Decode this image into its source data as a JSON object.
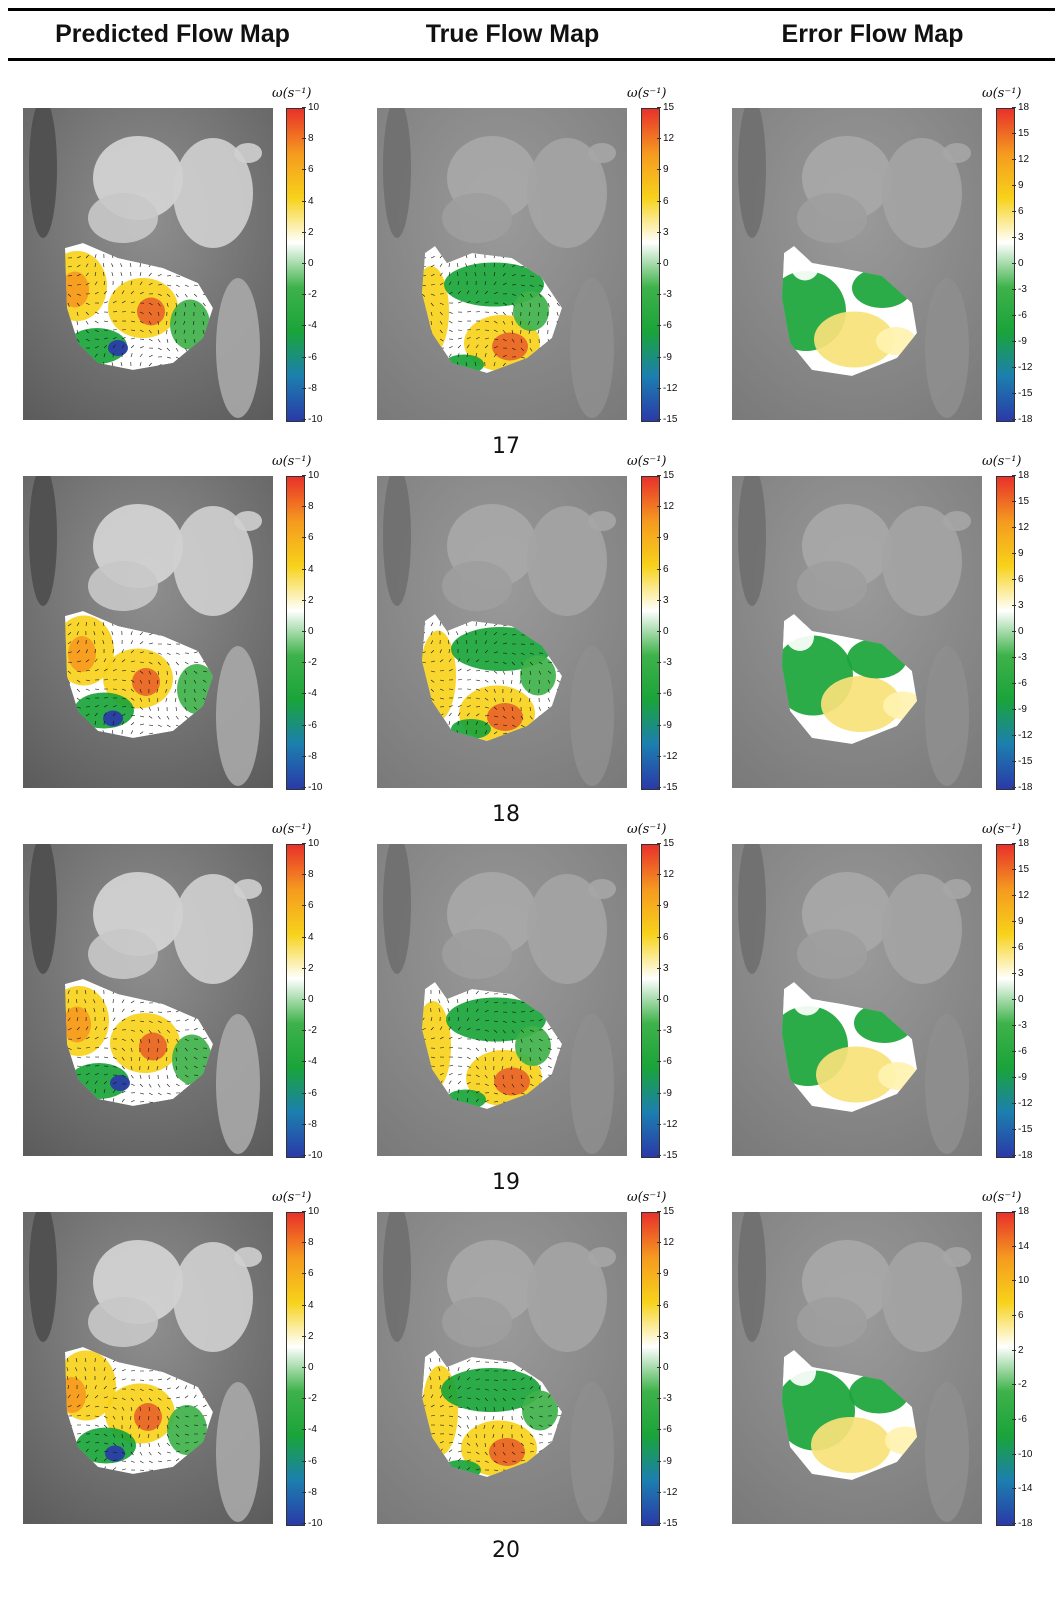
{
  "header": {
    "col_predicted": "Predicted Flow Map",
    "col_true": "True Flow Map",
    "col_error": "Error Flow Map"
  },
  "colorbar_unit": "ω(s⁻¹)",
  "rows": [
    {
      "frame": "17",
      "ticks": [
        [
          "10",
          "8",
          "6",
          "4",
          "2",
          "0",
          "-2",
          "-4",
          "-6",
          "-8",
          "-10"
        ],
        [
          "15",
          "12",
          "9",
          "6",
          "3",
          "0",
          "-3",
          "-6",
          "-9",
          "-12",
          "-15"
        ],
        [
          "18",
          "15",
          "12",
          "9",
          "6",
          "3",
          "0",
          "-3",
          "-6",
          "-9",
          "-12",
          "-15",
          "-18"
        ]
      ]
    },
    {
      "frame": "18",
      "ticks": [
        [
          "10",
          "8",
          "6",
          "4",
          "2",
          "0",
          "-2",
          "-4",
          "-6",
          "-8",
          "-10"
        ],
        [
          "15",
          "12",
          "9",
          "6",
          "3",
          "0",
          "-3",
          "-6",
          "-9",
          "-12",
          "-15"
        ],
        [
          "18",
          "15",
          "12",
          "9",
          "6",
          "3",
          "0",
          "-3",
          "-6",
          "-9",
          "-12",
          "-15",
          "-18"
        ]
      ]
    },
    {
      "frame": "19",
      "ticks": [
        [
          "10",
          "8",
          "6",
          "4",
          "2",
          "0",
          "-2",
          "-4",
          "-6",
          "-8",
          "-10"
        ],
        [
          "15",
          "12",
          "9",
          "6",
          "3",
          "0",
          "-3",
          "-6",
          "-9",
          "-12",
          "-15"
        ],
        [
          "18",
          "15",
          "12",
          "9",
          "6",
          "3",
          "0",
          "-3",
          "-6",
          "-9",
          "-12",
          "-15",
          "-18"
        ]
      ]
    },
    {
      "frame": "20",
      "ticks": [
        [
          "10",
          "8",
          "6",
          "4",
          "2",
          "0",
          "-2",
          "-4",
          "-6",
          "-8",
          "-10"
        ],
        [
          "15",
          "12",
          "9",
          "6",
          "3",
          "0",
          "-3",
          "-6",
          "-9",
          "-12",
          "-15"
        ],
        [
          "18",
          "14",
          "10",
          "6",
          "2",
          "-2",
          "-6",
          "-10",
          "-14",
          "-18"
        ]
      ]
    }
  ],
  "colors": {
    "high": "#e8312a",
    "mid_high": "#f7d21b",
    "zero": "#ffffff",
    "mid_low": "#1aa43a",
    "low": "#2a3aa8"
  }
}
